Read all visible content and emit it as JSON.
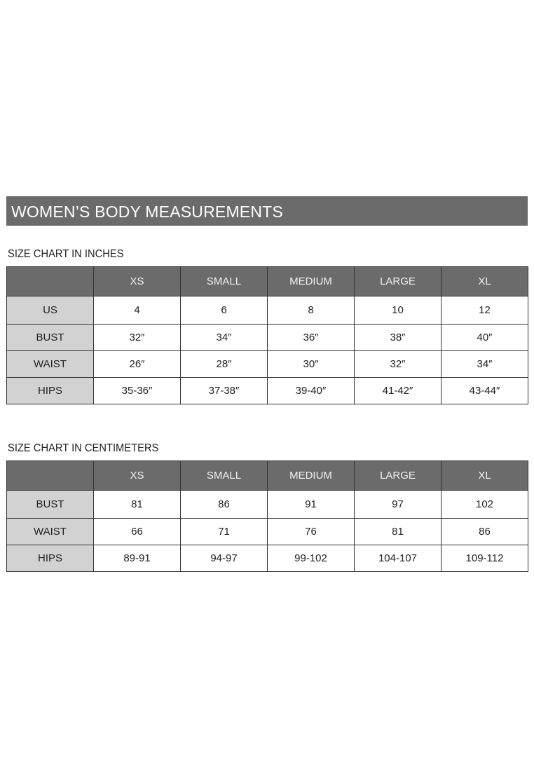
{
  "title": "WOMEN’S BODY MEASUREMENTS",
  "inches": {
    "label": "SIZE CHART IN INCHES",
    "columns": [
      "XS",
      "SMALL",
      "MEDIUM",
      "LARGE",
      "XL"
    ],
    "rows": [
      {
        "name": "US",
        "values": [
          "4",
          "6",
          "8",
          "10",
          "12"
        ]
      },
      {
        "name": "BUST",
        "values": [
          "32″",
          "34″",
          "36″",
          "38″",
          "40″"
        ]
      },
      {
        "name": "WAIST",
        "values": [
          "26″",
          "28″",
          "30″",
          "32″",
          "34″"
        ]
      },
      {
        "name": "HIPS",
        "values": [
          "35-36″",
          "37-38″",
          "39-40″",
          "41-42″",
          "43-44″"
        ]
      }
    ]
  },
  "centimeters": {
    "label": "SIZE CHART IN CENTIMETERS",
    "columns": [
      "XS",
      "SMALL",
      "MEDIUM",
      "LARGE",
      "XL"
    ],
    "rows": [
      {
        "name": "BUST",
        "values": [
          "81",
          "86",
          "91",
          "97",
          "102"
        ]
      },
      {
        "name": "WAIST",
        "values": [
          "66",
          "71",
          "76",
          "81",
          "86"
        ]
      },
      {
        "name": "HIPS",
        "values": [
          "89-91",
          "94-97",
          "99-102",
          "104-107",
          "109-112"
        ]
      }
    ]
  }
}
